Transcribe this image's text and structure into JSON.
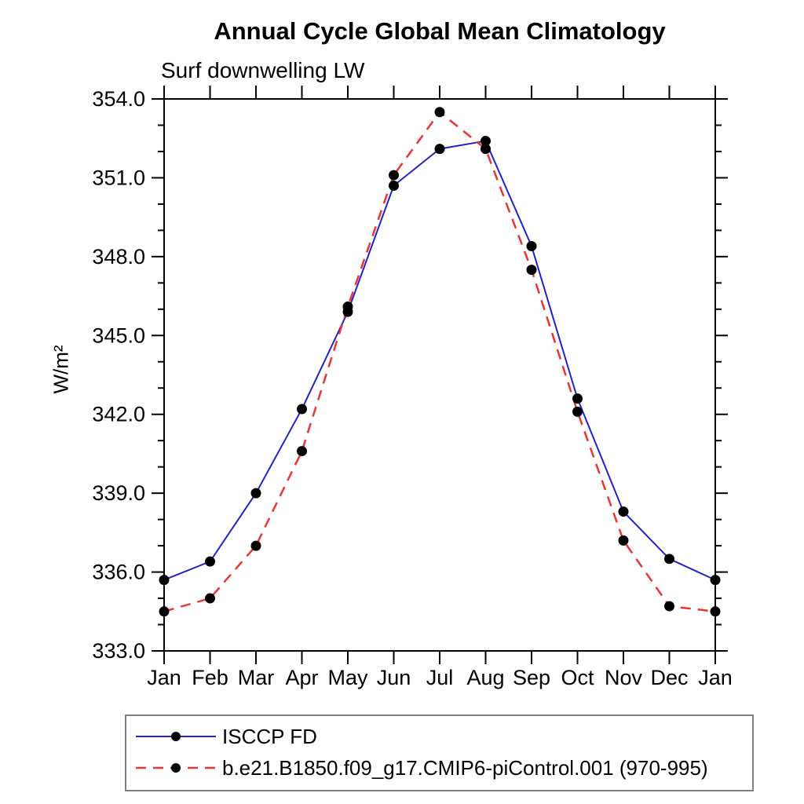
{
  "page": {
    "background": "#ffffff",
    "text_color": "#000000"
  },
  "chart_data": {
    "type": "line",
    "title": "Annual Cycle Global Mean Climatology",
    "subtitle": "Surf downwelling LW",
    "ylabel": "W/m²",
    "xlabel": "",
    "x_tick_labels": [
      "Jan",
      "Feb",
      "Mar",
      "Apr",
      "May",
      "Jun",
      "Jul",
      "Aug",
      "Sep",
      "Oct",
      "Nov",
      "Dec",
      "Jan"
    ],
    "ylim": [
      333.0,
      354.0
    ],
    "y_major_tick_step": 3.0,
    "y_minor_tick_step": 1.0,
    "y_major_tick_labels": [
      "333.0",
      "336.0",
      "339.0",
      "342.0",
      "345.0",
      "348.0",
      "351.0",
      "354.0"
    ],
    "grid": false,
    "legend_position": "bottom",
    "marker_color": "#000000",
    "axis_color": "#000000",
    "series": [
      {
        "name": "ISCCP FD",
        "line_color": "#2222cc",
        "line_style": "solid",
        "marker": "filled-circle",
        "values": [
          335.7,
          336.4,
          339.0,
          342.2,
          345.9,
          350.7,
          352.1,
          352.4,
          348.4,
          342.6,
          338.3,
          336.5,
          335.7
        ]
      },
      {
        "name": "b.e21.B1850.f09_g17.CMIP6-piControl.001 (970-995)",
        "line_color": "#ee3333",
        "line_style": "dashed",
        "marker": "filled-circle",
        "values": [
          334.5,
          335.0,
          337.0,
          340.6,
          346.1,
          351.1,
          353.5,
          352.1,
          347.5,
          342.1,
          337.2,
          334.7,
          334.5
        ]
      }
    ]
  }
}
